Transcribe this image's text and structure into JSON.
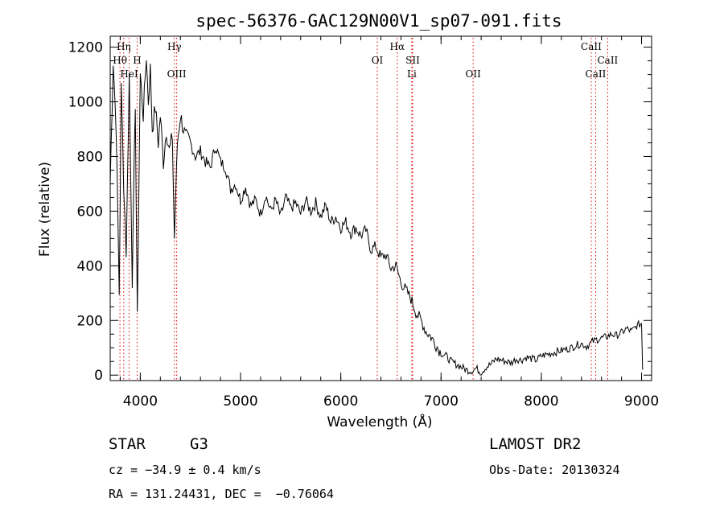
{
  "chart_data": {
    "type": "line",
    "title": "spec-56376-GAC129N00V1_sp07-091.fits",
    "xlabel": "Wavelength (Å)",
    "ylabel": "Flux (relative)",
    "xlim": [
      3700,
      9100
    ],
    "ylim": [
      -20,
      1240
    ],
    "x_ticks": [
      4000,
      5000,
      6000,
      7000,
      8000,
      9000
    ],
    "y_ticks": [
      0,
      200,
      400,
      600,
      800,
      1000,
      1200
    ],
    "grid": false,
    "series": [
      {
        "color": "#000000",
        "x": [
          3700,
          3730,
          3760,
          3790,
          3810,
          3835,
          3860,
          3890,
          3920,
          3950,
          3970,
          4000,
          4030,
          4060,
          4080,
          4100,
          4120,
          4150,
          4180,
          4200,
          4230,
          4260,
          4290,
          4320,
          4340,
          4370,
          4400,
          4450,
          4500,
          4550,
          4600,
          4650,
          4700,
          4750,
          4800,
          4850,
          4900,
          4950,
          5000,
          5050,
          5100,
          5150,
          5200,
          5250,
          5300,
          5350,
          5400,
          5450,
          5500,
          5550,
          5600,
          5650,
          5700,
          5750,
          5800,
          5850,
          5900,
          5950,
          6000,
          6050,
          6100,
          6150,
          6200,
          6250,
          6300,
          6350,
          6400,
          6450,
          6500,
          6550,
          6600,
          6650,
          6700,
          6750,
          6800,
          6850,
          6900,
          6950,
          7000,
          7050,
          7100,
          7150,
          7200,
          7250,
          7300,
          7350,
          7400,
          7450,
          7500,
          7550,
          7600,
          7650,
          7700,
          7750,
          7800,
          7850,
          7900,
          7950,
          8000,
          8050,
          8100,
          8150,
          8200,
          8250,
          8300,
          8350,
          8400,
          8450,
          8500,
          8550,
          8600,
          8650,
          8700,
          8750,
          8800,
          8850,
          8900,
          8950,
          9000,
          9010
        ],
        "y": [
          700,
          1150,
          900,
          300,
          1050,
          700,
          450,
          1100,
          350,
          1000,
          200,
          1100,
          950,
          1170,
          1000,
          1120,
          900,
          980,
          850,
          950,
          780,
          900,
          820,
          870,
          500,
          850,
          950,
          870,
          850,
          800,
          820,
          780,
          760,
          840,
          780,
          760,
          680,
          700,
          640,
          690,
          620,
          640,
          590,
          660,
          600,
          640,
          580,
          650,
          610,
          630,
          590,
          640,
          600,
          630,
          580,
          620,
          560,
          580,
          540,
          560,
          520,
          540,
          510,
          530,
          460,
          470,
          430,
          440,
          390,
          400,
          340,
          310,
          280,
          230,
          200,
          160,
          140,
          110,
          80,
          70,
          50,
          40,
          30,
          20,
          15,
          25,
          10,
          30,
          40,
          60,
          55,
          50,
          45,
          60,
          55,
          65,
          60,
          55,
          70,
          75,
          80,
          85,
          90,
          95,
          100,
          110,
          115,
          105,
          120,
          130,
          135,
          140,
          150,
          145,
          155,
          170,
          160,
          180,
          190,
          20
        ]
      }
    ],
    "spectral_lines": [
      {
        "name": "Hη",
        "wavelength": 3835,
        "row": 1
      },
      {
        "name": "Hθ",
        "wavelength": 3797,
        "row": 2
      },
      {
        "name": "H",
        "wavelength": 3969,
        "row": 2
      },
      {
        "name": "HeI",
        "wavelength": 3889,
        "row": 3
      },
      {
        "name": "Hγ",
        "wavelength": 4340,
        "row": 1
      },
      {
        "name": "OIII",
        "wavelength": 4363,
        "row": 3
      },
      {
        "name": "OI",
        "wavelength": 6364,
        "row": 2
      },
      {
        "name": "Hα",
        "wavelength": 6563,
        "row": 1
      },
      {
        "name": "SII",
        "wavelength": 6717,
        "row": 2
      },
      {
        "name": "Li",
        "wavelength": 6708,
        "row": 3
      },
      {
        "name": "OII",
        "wavelength": 7320,
        "row": 3
      },
      {
        "name": "CaII",
        "wavelength": 8498,
        "row": 1
      },
      {
        "name": "CaII",
        "wavelength": 8662,
        "row": 2
      },
      {
        "name": "CaII",
        "wavelength": 8542,
        "row": 3
      }
    ],
    "line_marker_color": "#e00000"
  },
  "info": {
    "object_class": "STAR",
    "subclass": "G3",
    "survey": "LAMOST DR2",
    "cz": "cz = −34.9 ± 0.4 km/s",
    "obs_date": "Obs-Date: 20130324",
    "coords": "RA = 131.24431, DEC =  −0.76064"
  }
}
